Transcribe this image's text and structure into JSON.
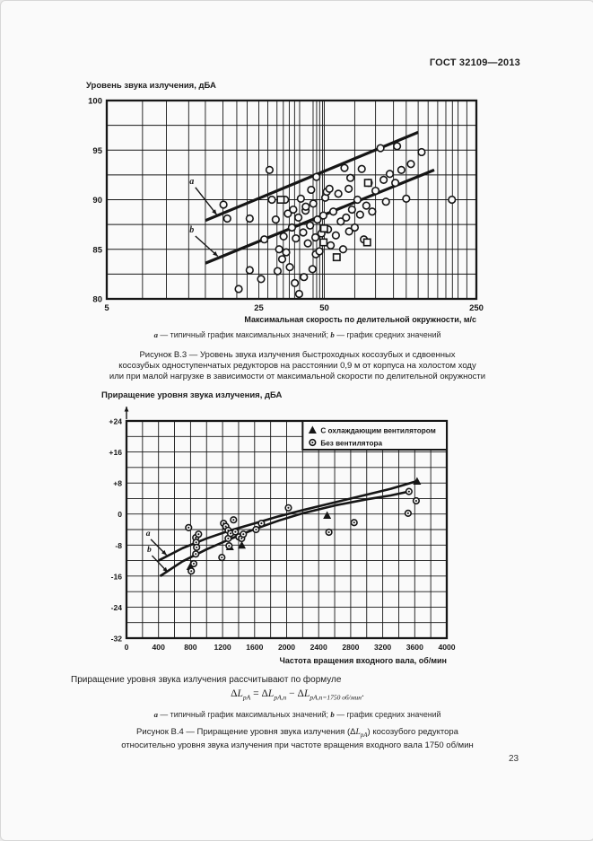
{
  "page": {
    "header": "ГОСТ 32109—2013",
    "page_number": "23",
    "paper_color": "#fafafa",
    "ink_color": "#161616"
  },
  "notes": {
    "a": "a",
    "a_text": " — типичный график максимальных значений; ",
    "b": "b",
    "b_text": " — график средних значений"
  },
  "figure3": {
    "caption_line1": "Рисунок В.3 — Уровень звука излучения быстроходных косозубых и сдвоенных",
    "caption_line2": "косозубых одноступенчатых редукторов на расстоянии 0,9 м от корпуса на холостом ходу",
    "caption_line3": "или при малой нагрузке в зависимости от максимальной скорости по делительной окружности"
  },
  "figure4": {
    "intro": "Приращение уровня звука излучения рассчитывают по формуле",
    "l1a": "Рисунок В.4 — Приращение уровня звука излучения (Δ",
    "l1b": ") косозубого редуктора",
    "line2": "относительно уровня звука излучения при частоте вращения входного вала 1750 об/мин"
  },
  "formula": {
    "delta": "Δ",
    "L": "L",
    "subs": [
      "pA",
      "pA,n",
      "pA,n=1750 об/мин"
    ],
    "eq": " = ",
    "minus": " − ",
    "dot": "."
  },
  "chart_data": [
    {
      "type": "scatter",
      "title": "Уровень звука излучения, дБА",
      "xlabel": "Максимальная скорость по делительной окружности, м/с",
      "ylabel": "",
      "x_scale": "log",
      "xlim": [
        5,
        250
      ],
      "ylim": [
        80,
        100
      ],
      "x_ticks": [
        5,
        25,
        50,
        250
      ],
      "y_ticks": [
        100,
        95,
        90,
        85,
        80
      ],
      "y_grid_step": 2.5,
      "x_gridlines": [
        7.3,
        9.4,
        11.9,
        14.2,
        17.1,
        19.8,
        22.1,
        25,
        27.5,
        30.3,
        32.4,
        34.5,
        36.5,
        38.5,
        44.4,
        46.1,
        47.6,
        49.1,
        50,
        69,
        86,
        104,
        119,
        135,
        150,
        166,
        181,
        194,
        206,
        226
      ],
      "grid": true,
      "series": [
        {
          "name": "измеренные уровни (кружки)",
          "marker": "circle",
          "points": [
            [
              17.2,
              89.5
            ],
            [
              17.9,
              88.1
            ],
            [
              20.2,
              81.0
            ],
            [
              22.7,
              88.1
            ],
            [
              22.7,
              82.9
            ],
            [
              25.6,
              82.0
            ],
            [
              26.5,
              86.0
            ],
            [
              28.0,
              93.0
            ],
            [
              28.7,
              90.0
            ],
            [
              29.9,
              88.0
            ],
            [
              30.5,
              82.8
            ],
            [
              31.0,
              85.0
            ],
            [
              32.0,
              84.0
            ],
            [
              32.5,
              86.3
            ],
            [
              33.0,
              90.0
            ],
            [
              33.4,
              84.7
            ],
            [
              34.0,
              88.6
            ],
            [
              34.7,
              83.2
            ],
            [
              35.5,
              87.2
            ],
            [
              36.0,
              89.0
            ],
            [
              36.6,
              81.6
            ],
            [
              37.0,
              86.1
            ],
            [
              38.0,
              88.2
            ],
            [
              38.3,
              80.5
            ],
            [
              39.0,
              90.1
            ],
            [
              40.0,
              86.7
            ],
            [
              40.3,
              82.2
            ],
            [
              41.0,
              88.9
            ],
            [
              41.1,
              89.3
            ],
            [
              42.0,
              85.6
            ],
            [
              43.0,
              87.4
            ],
            [
              43.5,
              91.0
            ],
            [
              44.1,
              83.0
            ],
            [
              44.5,
              89.6
            ],
            [
              45.5,
              86.2
            ],
            [
              45.7,
              84.5
            ],
            [
              46.0,
              92.3
            ],
            [
              46.5,
              88.0
            ],
            [
              47.5,
              84.8
            ],
            [
              48.5,
              86.6
            ],
            [
              49.5,
              88.4
            ],
            [
              50.5,
              90.2
            ],
            [
              51.3,
              90.8
            ],
            [
              52.0,
              87.0
            ],
            [
              52.8,
              91.1
            ],
            [
              53.5,
              85.4
            ],
            [
              55.0,
              88.8
            ],
            [
              56.5,
              86.4
            ],
            [
              58.0,
              90.6
            ],
            [
              59.5,
              87.8
            ],
            [
              61.0,
              85.0
            ],
            [
              61.9,
              93.2
            ],
            [
              63.0,
              88.2
            ],
            [
              64.7,
              91.1
            ],
            [
              65.0,
              86.8
            ],
            [
              65.9,
              92.2
            ],
            [
              67.0,
              89.0
            ],
            [
              69.0,
              87.2
            ],
            [
              71.0,
              90.0
            ],
            [
              73.0,
              88.5
            ],
            [
              74.3,
              93.1
            ],
            [
              76.0,
              86.0
            ],
            [
              78.0,
              89.4
            ],
            [
              80.0,
              91.7
            ],
            [
              83.0,
              88.8
            ],
            [
              86.0,
              90.9
            ],
            [
              90.6,
              95.2
            ],
            [
              93.7,
              92.0
            ],
            [
              96.0,
              89.8
            ],
            [
              100.0,
              92.6
            ],
            [
              106.0,
              91.7
            ],
            [
              108.0,
              95.4
            ],
            [
              113.0,
              93.0
            ],
            [
              119.0,
              90.1
            ],
            [
              125.0,
              93.6
            ],
            [
              140.0,
              94.8
            ],
            [
              193.0,
              90.0
            ]
          ]
        },
        {
          "name": "измеренные уровни (квадратики)",
          "marker": "square",
          "points": [
            [
              31.5,
              90.0
            ],
            [
              49.9,
              87.1
            ],
            [
              49.6,
              85.7
            ],
            [
              57.0,
              84.2
            ],
            [
              78.7,
              85.7
            ],
            [
              79.4,
              91.7
            ]
          ]
        },
        {
          "name": "a — типичный график максимальных значений",
          "type": "line",
          "label": "a",
          "points": [
            [
              14.2,
              87.9
            ],
            [
              135,
              96.8
            ]
          ],
          "label_pos": [
            12.3,
            91.6
          ],
          "arrow_to": [
            16.0,
            88.5
          ]
        },
        {
          "name": "b — график средних значений",
          "type": "line",
          "label": "b",
          "points": [
            [
              14.2,
              83.6
            ],
            [
              160,
              93.0
            ]
          ],
          "label_pos": [
            12.3,
            86.7
          ],
          "arrow_to": [
            16.2,
            84.3
          ]
        }
      ]
    },
    {
      "type": "scatter",
      "title": "Приращение уровня звука излучения, дБА",
      "xlabel": "Частота вращения входного вала, об/мин",
      "ylabel": "",
      "x_scale": "linear",
      "xlim": [
        0,
        4000
      ],
      "ylim": [
        -32,
        24
      ],
      "x_tick_step": 400,
      "x_grid_step": 200,
      "y_tick_step": 8,
      "y_grid_step": 4,
      "grid": true,
      "legend_position": "top-right",
      "legend": [
        {
          "marker": "triangle",
          "label": "С охлаждающим вентилятором"
        },
        {
          "marker": "circle-dot",
          "label": "Без вентилятора"
        }
      ],
      "series": [
        {
          "name": "С охлаждающим вентилятором",
          "marker": "triangle",
          "points": [
            [
              798,
              -13.5
            ],
            [
              1292,
              -8.4
            ],
            [
              1440,
              -8.0
            ],
            [
              2506,
              -0.3
            ],
            [
              3629,
              8.5
            ]
          ]
        },
        {
          "name": "Без вентилятора",
          "marker": "circle-dot",
          "points": [
            [
              776,
              -3.5
            ],
            [
              809,
              -14.7
            ],
            [
              840,
              -12.8
            ],
            [
              865,
              -6.1
            ],
            [
              870,
              -7.3
            ],
            [
              876,
              -8.6
            ],
            [
              865,
              -10.3
            ],
            [
              900,
              -5.2
            ],
            [
              1191,
              -11.2
            ],
            [
              1213,
              -2.4
            ],
            [
              1240,
              -3.2
            ],
            [
              1270,
              -4.2
            ],
            [
              1270,
              -6.3
            ],
            [
              1281,
              -8.2
            ],
            [
              1300,
              -5.0
            ],
            [
              1337,
              -1.5
            ],
            [
              1360,
              -4.6
            ],
            [
              1404,
              -5.9
            ],
            [
              1438,
              -6.3
            ],
            [
              1460,
              -5.2
            ],
            [
              1618,
              -4.0
            ],
            [
              1685,
              -2.4
            ],
            [
              2022,
              1.6
            ],
            [
              2528,
              -4.7
            ],
            [
              2843,
              -2.2
            ],
            [
              3517,
              0.2
            ],
            [
              3528,
              5.8
            ],
            [
              3618,
              3.4
            ]
          ]
        },
        {
          "name": "a — типичный график максимальных значений",
          "type": "curve",
          "label": "a",
          "label_pos": [
            270,
            -5.6
          ],
          "arrow_to": [
            500,
            -10.6
          ],
          "points": [
            [
              400,
              -12
            ],
            [
              700,
              -8.8
            ],
            [
              1000,
              -6.3
            ],
            [
              1300,
              -4.2
            ],
            [
              1600,
              -2.4
            ],
            [
              1900,
              -0.6
            ],
            [
              2200,
              1.0
            ],
            [
              2600,
              3.0
            ],
            [
              3000,
              5.0
            ],
            [
              3300,
              6.5
            ],
            [
              3629,
              8.5
            ]
          ]
        },
        {
          "name": "b — график средних значений",
          "type": "curve",
          "label": "b",
          "label_pos": [
            285,
            -9.8
          ],
          "arrow_to": [
            515,
            -15.0
          ],
          "points": [
            [
              420,
              -16
            ],
            [
              700,
              -12.2
            ],
            [
              1000,
              -9.1
            ],
            [
              1300,
              -6.4
            ],
            [
              1600,
              -3.9
            ],
            [
              1900,
              -1.7
            ],
            [
              2200,
              0.2
            ],
            [
              2600,
              2.2
            ],
            [
              3000,
              3.8
            ],
            [
              3300,
              4.8
            ],
            [
              3528,
              5.8
            ]
          ]
        }
      ]
    }
  ]
}
